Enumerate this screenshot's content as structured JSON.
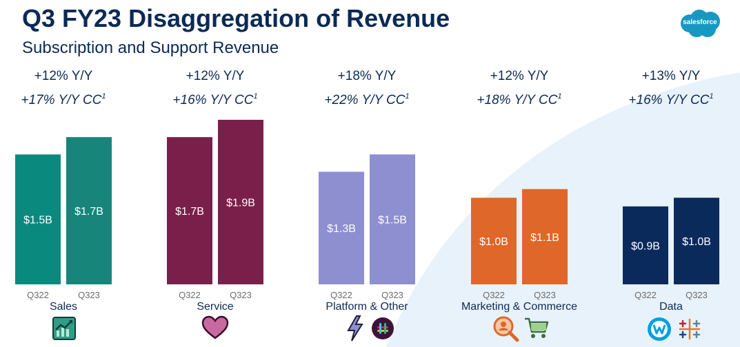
{
  "header": {
    "title": "Q3 FY23 Disaggregation of Revenue",
    "subtitle": "Subscription and Support Revenue",
    "logo_text": "salesforce"
  },
  "chart_data": {
    "type": "bar",
    "periods": [
      "Q322",
      "Q323"
    ],
    "ylim": [
      0,
      1.9
    ],
    "groups": [
      {
        "name": "Sales",
        "values": [
          1.5,
          1.7
        ],
        "labels": [
          "$1.5B",
          "$1.7B"
        ],
        "growth": "+12% Y/Y",
        "growth_cc": "+17% Y/Y CC",
        "color_a": "#0a8a7e",
        "color_b": "#17857a",
        "label_color": "#ffffff"
      },
      {
        "name": "Service",
        "values": [
          1.7,
          1.9
        ],
        "labels": [
          "$1.7B",
          "$1.9B"
        ],
        "growth": "+12% Y/Y",
        "growth_cc": "+16% Y/Y CC",
        "color_a": "#7a1f4a",
        "color_b": "#7a1f4a",
        "label_color": "#ffffff"
      },
      {
        "name": "Platform & Other",
        "values": [
          1.3,
          1.5
        ],
        "labels": [
          "$1.3B",
          "$1.5B"
        ],
        "growth": "+18% Y/Y",
        "growth_cc": "+22% Y/Y CC",
        "color_a": "#8d8fd1",
        "color_b": "#8d8fd1",
        "label_color": "#ffffff"
      },
      {
        "name": "Marketing & Commerce",
        "values": [
          1.0,
          1.1
        ],
        "labels": [
          "$1.0B",
          "$1.1B"
        ],
        "growth": "+12% Y/Y",
        "growth_cc": "+18% Y/Y CC",
        "color_a": "#e0672a",
        "color_b": "#e0672a",
        "label_color": "#ffffff"
      },
      {
        "name": "Data",
        "values": [
          0.9,
          1.0
        ],
        "labels": [
          "$0.9B",
          "$1.0B"
        ],
        "growth": "+13% Y/Y",
        "growth_cc": "+16% Y/Y CC",
        "color_a": "#0b2a5c",
        "color_b": "#0b2a5c",
        "label_color": "#ffffff"
      }
    ],
    "footnote_marker": "1"
  },
  "icons": [
    "sales-trend-icon",
    "service-heart-icon",
    "platform-lightning-icon",
    "slack-icon",
    "marketing-search-icon",
    "commerce-cart-icon",
    "mulesoft-icon",
    "tableau-icon"
  ],
  "colors": {
    "title": "#0b2a55",
    "axis_label": "#6b6b6b",
    "background_arc": "#e8f2fb"
  }
}
